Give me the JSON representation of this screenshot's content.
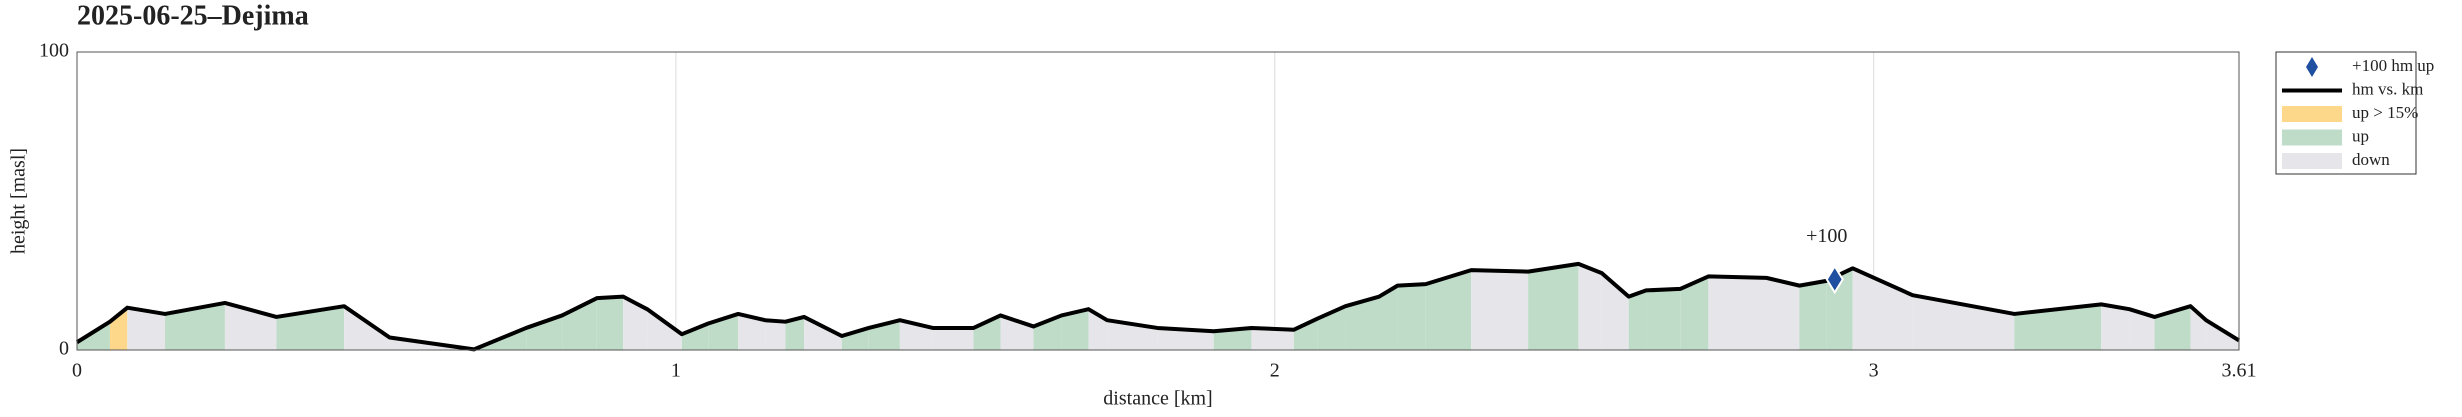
{
  "chart_data": {
    "type": "profile",
    "title": "2025-06-25–Dejima",
    "x_label": "distance [km]",
    "y_label": "height [masl]",
    "xlim": [
      0,
      3.61
    ],
    "ylim": [
      0,
      100
    ],
    "xticks": [
      0,
      1,
      2,
      3,
      3.61
    ],
    "yticks": [
      0,
      100
    ],
    "grid": "x",
    "legend": "outside-right",
    "series": [
      {
        "name": "hm vs. km",
        "color": "#000000",
        "x": [
          0,
          0.055,
          0.084,
          0.147,
          0.247,
          0.333,
          0.446,
          0.522,
          0.663,
          0.75,
          0.81,
          0.868,
          0.912,
          0.952,
          1.01,
          1.054,
          1.104,
          1.149,
          1.183,
          1.214,
          1.277,
          1.322,
          1.374,
          1.429,
          1.497,
          1.542,
          1.597,
          1.644,
          1.689,
          1.72,
          1.804,
          1.898,
          1.961,
          2.032,
          2.071,
          2.118,
          2.174,
          2.205,
          2.252,
          2.328,
          2.423,
          2.507,
          2.546,
          2.591,
          2.62,
          2.677,
          2.724,
          2.821,
          2.876,
          2.921,
          2.965,
          3.065,
          3.235,
          3.38,
          3.427,
          3.469,
          3.529,
          3.555,
          3.61
        ],
        "values": [
          2.6,
          9.5,
          14.2,
          12.1,
          15.8,
          11.1,
          14.7,
          4.2,
          0.2,
          7.4,
          11.6,
          17.4,
          17.9,
          13.7,
          5.3,
          8.9,
          12.1,
          10,
          9.5,
          11.1,
          4.7,
          7.4,
          10,
          7.4,
          7.4,
          11.6,
          7.9,
          11.6,
          13.7,
          10,
          7.4,
          6.3,
          7.4,
          6.8,
          10.5,
          14.7,
          17.9,
          21.6,
          22.1,
          26.8,
          26.3,
          28.9,
          25.8,
          17.9,
          20,
          20.5,
          24.7,
          24.2,
          21.6,
          23.2,
          27.4,
          18.4,
          12.1,
          15.3,
          13.7,
          11.1,
          14.7,
          10,
          3.2
        ]
      }
    ],
    "steep_percent": 15,
    "shading": [
      {
        "name": "up > 15%",
        "color": "#fdd88a",
        "kind": "steep"
      },
      {
        "name": "up",
        "color": "#bfdcc8",
        "kind": "up"
      },
      {
        "name": "down",
        "color": "#e6e6ea",
        "kind": "down"
      }
    ],
    "marker": {
      "name": "+100 hm up",
      "label": "+100",
      "x": 2.935,
      "y": 23.7,
      "color": "#1f4fa0"
    }
  }
}
